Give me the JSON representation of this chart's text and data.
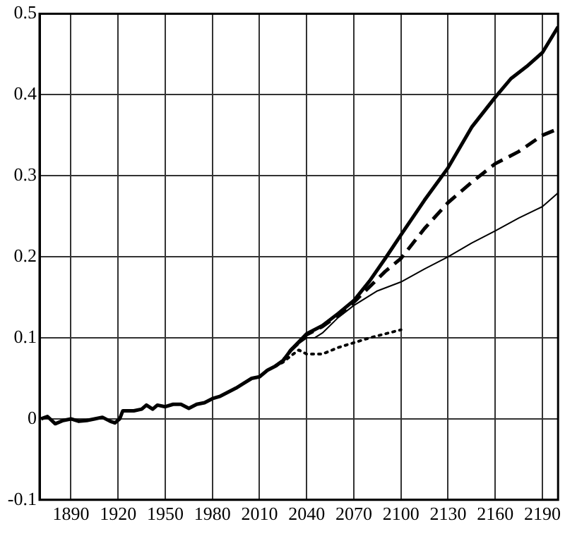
{
  "chart_data": {
    "type": "line",
    "xlim": [
      1870,
      2200
    ],
    "xticks": [
      1890,
      1920,
      1950,
      1980,
      2010,
      2040,
      2070,
      2100,
      2130,
      2160,
      2190
    ],
    "ylim": [
      -0.1,
      0.5
    ],
    "yticks": [
      -0.1,
      0,
      0.1,
      0.2,
      0.3,
      0.4,
      0.5
    ],
    "grid": true,
    "legend": false,
    "marker": "none",
    "series": [
      {
        "color": "#000000",
        "line_style": "solid",
        "x": [
          1871,
          1875,
          1880,
          1885,
          1890,
          1895,
          1900,
          1905,
          1910,
          1915,
          1918,
          1921,
          1923,
          1930,
          1935,
          1938,
          1942,
          1945,
          1950,
          1955,
          1960,
          1965,
          1970,
          1975,
          1980,
          1985,
          1990,
          1995,
          2000,
          2005,
          2010,
          2015,
          2020,
          2025,
          2030,
          2035,
          2040,
          2050,
          2060,
          2070,
          2080,
          2090,
          2100,
          2115,
          2130,
          2145,
          2160,
          2170,
          2180,
          2190,
          2200
        ],
        "values": [
          0,
          0.003,
          -0.006,
          -0.002,
          0,
          -0.003,
          -0.002,
          0,
          0.002,
          -0.003,
          -0.005,
          0,
          0.01,
          0.01,
          0.012,
          0.017,
          0.012,
          0.017,
          0.015,
          0.018,
          0.018,
          0.013,
          0.018,
          0.02,
          0.025,
          0.028,
          0.033,
          0.038,
          0.044,
          0.05,
          0.052,
          0.06,
          0.065,
          0.072,
          0.085,
          0.095,
          0.105,
          0.115,
          0.13,
          0.146,
          0.17,
          0.198,
          0.227,
          0.27,
          0.31,
          0.36,
          0.397,
          0.42,
          0.435,
          0.452,
          0.484
        ]
      },
      {
        "color": "#000000",
        "line_style": "dashed",
        "x": [
          2020,
          2025,
          2030,
          2035,
          2040,
          2050,
          2060,
          2070,
          2080,
          2090,
          2100,
          2115,
          2130,
          2145,
          2160,
          2175,
          2190,
          2200
        ],
        "values": [
          0.065,
          0.072,
          0.085,
          0.094,
          0.104,
          0.114,
          0.128,
          0.144,
          0.163,
          0.182,
          0.198,
          0.235,
          0.267,
          0.292,
          0.315,
          0.33,
          0.35,
          0.358
        ]
      },
      {
        "color": "#000000",
        "line_style": "solid",
        "x": [
          2020,
          2025,
          2030,
          2035,
          2040,
          2045,
          2050,
          2060,
          2070,
          2085,
          2100,
          2115,
          2130,
          2145,
          2160,
          2175,
          2190,
          2200
        ],
        "values": [
          0.065,
          0.072,
          0.084,
          0.093,
          0.1,
          0.1,
          0.106,
          0.125,
          0.14,
          0.158,
          0.169,
          0.185,
          0.2,
          0.217,
          0.232,
          0.248,
          0.262,
          0.279
        ]
      },
      {
        "color": "#000000",
        "line_style": "dotted",
        "x": [
          2020,
          2025,
          2030,
          2035,
          2040,
          2045,
          2050,
          2060,
          2070,
          2080,
          2090,
          2100
        ],
        "values": [
          0.065,
          0.07,
          0.078,
          0.085,
          0.08,
          0.08,
          0.08,
          0.088,
          0.094,
          0.1,
          0.105,
          0.11
        ]
      }
    ]
  }
}
